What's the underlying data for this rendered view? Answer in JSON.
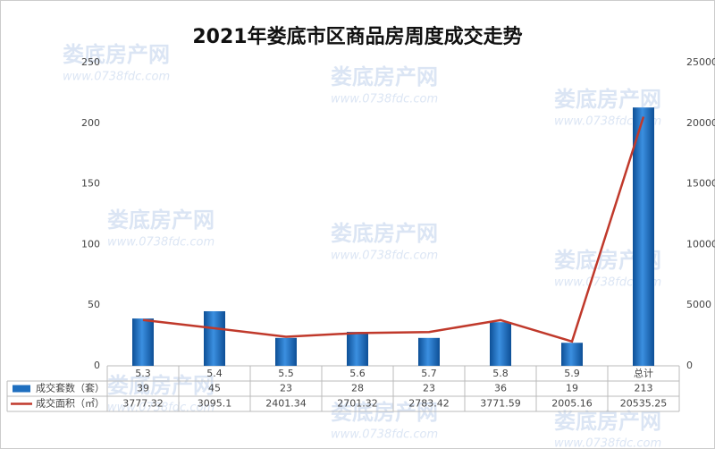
{
  "chart_data": {
    "type": "bar-line",
    "title": "2021年娄底市区商品房周度成交走势",
    "categories": [
      "5.3",
      "5.4",
      "5.5",
      "5.6",
      "5.7",
      "5.8",
      "5.9",
      "总计"
    ],
    "series": [
      {
        "name": "成交套数（套）",
        "color": "#1f6fbf",
        "type": "bar",
        "values": [
          39,
          45,
          23,
          28,
          23,
          36,
          19,
          213
        ]
      },
      {
        "name": "成交面积（㎡）",
        "color": "#c0392b",
        "type": "line",
        "axis": "y2",
        "values": [
          3777.32,
          3095.1,
          2401.34,
          2701.32,
          2783.42,
          3771.59,
          2005.16,
          20535.25
        ]
      }
    ],
    "ylim": [
      0,
      250
    ],
    "yticks": [
      0,
      50,
      100,
      150,
      200,
      250
    ],
    "y2lim": [
      0,
      25000
    ],
    "y2ticks": [
      0,
      5000,
      10000,
      15000,
      20000,
      25000
    ],
    "watermark": {
      "name": "娄底房产网",
      "url": "www.0738fdc.com"
    }
  }
}
